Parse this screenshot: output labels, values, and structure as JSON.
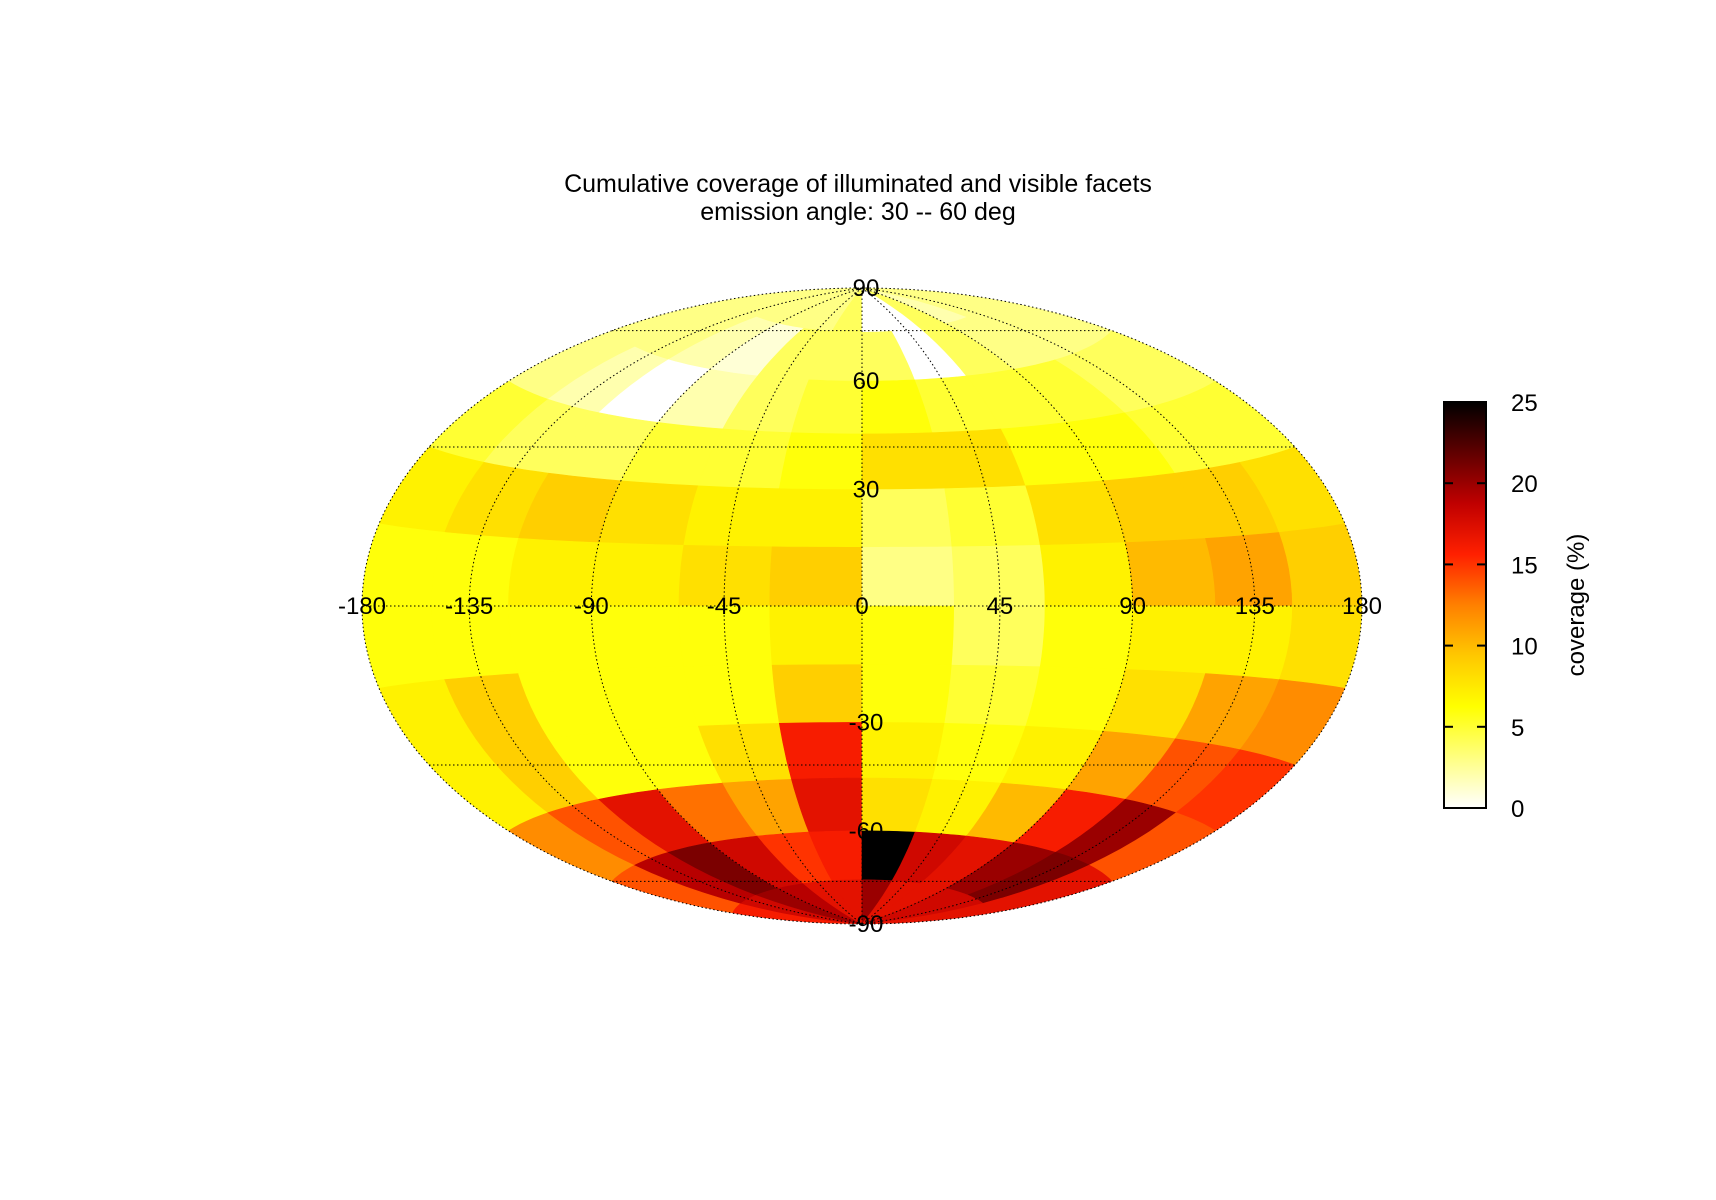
{
  "chart_data": {
    "type": "heatmap",
    "projection": "hammer-aitoff",
    "title": "Cumulative coverage of illuminated and visible facets",
    "subtitle": "emission angle: 30 -- 60 deg",
    "x_ticks": [
      "-180",
      "-135",
      "-90",
      "-45",
      "0",
      "45",
      "90",
      "135",
      "180"
    ],
    "y_ticks": [
      "90",
      "60",
      "30",
      "-30",
      "-60",
      "-90"
    ],
    "x_range": [
      -180,
      180
    ],
    "y_range": [
      -90,
      90
    ],
    "graticule_lon": [
      -135,
      -90,
      -45,
      0,
      45,
      90,
      135
    ],
    "graticule_lat": [
      -60,
      -30,
      30,
      60
    ],
    "grid": true,
    "colorbar": {
      "label": "coverage (%)",
      "ticks": [
        "0",
        "5",
        "10",
        "15",
        "20",
        "25"
      ],
      "range": [
        0,
        25
      ],
      "colormap": [
        "#ffffff",
        "#ffff80",
        "#ffff00",
        "#ffc800",
        "#ff8000",
        "#ff2000",
        "#c00000",
        "#600000",
        "#000000"
      ],
      "placement": "right"
    },
    "lon_bands": [
      -180,
      -150,
      -120,
      -90,
      -60,
      -30,
      0,
      30,
      60,
      90,
      120,
      150,
      180
    ],
    "lat_bands": [
      90,
      75,
      60,
      45,
      30,
      15,
      0,
      -15,
      -30,
      -45,
      -60,
      -75,
      -90
    ],
    "values": [
      [
        3,
        3,
        3,
        3,
        3,
        4,
        0,
        0,
        4,
        2,
        3,
        3
      ],
      [
        3,
        3,
        2,
        1,
        4,
        4,
        4,
        0,
        4,
        3,
        3,
        3
      ],
      [
        3,
        2,
        0,
        2,
        4,
        5,
        6,
        5,
        5,
        5,
        4,
        4
      ],
      [
        5,
        4,
        4,
        5,
        5,
        6,
        8,
        8,
        6,
        6,
        5,
        5
      ],
      [
        7,
        8,
        9,
        8,
        7,
        7,
        4,
        5,
        8,
        9,
        9,
        8
      ],
      [
        6,
        6,
        7,
        7,
        8,
        9,
        3,
        4,
        7,
        10,
        11,
        9
      ],
      [
        6,
        6,
        6,
        6,
        6,
        7,
        6,
        4,
        6,
        7,
        7,
        8
      ],
      [
        7,
        9,
        6,
        6,
        6,
        9,
        6,
        5,
        6,
        8,
        11,
        12
      ],
      [
        7,
        9,
        6,
        6,
        8,
        16,
        7,
        6,
        7,
        11,
        14,
        15
      ],
      [
        12,
        14,
        17,
        13,
        11,
        17,
        8,
        7,
        10,
        16,
        20,
        14
      ],
      [
        14,
        19,
        21,
        18,
        15,
        16,
        25,
        18,
        17,
        20,
        21,
        17
      ],
      [
        16,
        18,
        20,
        19,
        17,
        17,
        20,
        17,
        17,
        18,
        18,
        17
      ]
    ]
  }
}
